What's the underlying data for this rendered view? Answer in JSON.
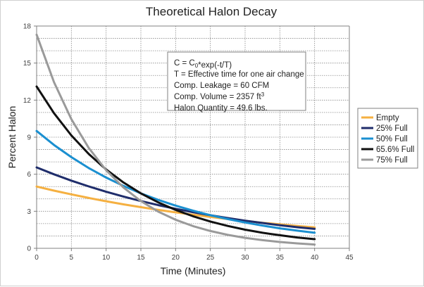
{
  "chart_data": {
    "type": "line",
    "title": "Theoretical Halon Decay",
    "xlabel": "Time (Minutes)",
    "ylabel": "Percent Halon",
    "xlim": [
      0,
      45
    ],
    "ylim": [
      0,
      18
    ],
    "xticks": [
      0,
      5,
      10,
      15,
      20,
      25,
      30,
      35,
      40,
      45
    ],
    "yticks": [
      0,
      3,
      6,
      9,
      12,
      15,
      18
    ],
    "grid": true,
    "legend_position": "right",
    "x": [
      0,
      2.5,
      5,
      7.5,
      10,
      12.5,
      15,
      17.5,
      20,
      22.5,
      25,
      27.5,
      30,
      32.5,
      35,
      37.5,
      40
    ],
    "series": [
      {
        "name": "Empty",
        "color": "#f5b041",
        "values": [
          5.0,
          4.67,
          4.37,
          4.08,
          3.81,
          3.56,
          3.33,
          3.11,
          2.91,
          2.72,
          2.54,
          2.37,
          2.22,
          2.07,
          1.94,
          1.81,
          1.69
        ]
      },
      {
        "name": "25% Full",
        "color": "#1f2d6b",
        "values": [
          6.55,
          5.99,
          5.48,
          5.01,
          4.58,
          4.19,
          3.83,
          3.5,
          3.2,
          2.93,
          2.68,
          2.45,
          2.24,
          2.05,
          1.87,
          1.71,
          1.57
        ]
      },
      {
        "name": "50% Full",
        "color": "#1a8fd0",
        "values": [
          9.5,
          8.37,
          7.38,
          6.5,
          5.73,
          5.05,
          4.45,
          3.92,
          3.46,
          3.05,
          2.68,
          2.37,
          2.09,
          1.84,
          1.62,
          1.43,
          1.26
        ]
      },
      {
        "name": "65.6% Full",
        "color": "#111111",
        "values": [
          13.1,
          10.94,
          9.14,
          7.64,
          6.38,
          5.33,
          4.45,
          3.72,
          3.11,
          2.6,
          2.17,
          1.81,
          1.51,
          1.26,
          1.06,
          0.88,
          0.74
        ]
      },
      {
        "name": "75% Full",
        "color": "#9a9a9a",
        "values": [
          17.3,
          13.45,
          10.46,
          8.13,
          6.32,
          4.92,
          3.82,
          2.97,
          2.31,
          1.8,
          1.4,
          1.09,
          0.85,
          0.66,
          0.51,
          0.4,
          0.31
        ]
      }
    ],
    "annotation": {
      "lines": [
        {
          "parts": [
            {
              "t": "C = C"
            },
            {
              "t": "0",
              "sub": true
            },
            {
              "t": "*exp(-t/T)"
            }
          ]
        },
        {
          "parts": [
            {
              "t": "T = Effective time for one air change"
            }
          ]
        },
        {
          "parts": [
            {
              "t": "Comp. Leakage = 60 CFM"
            }
          ]
        },
        {
          "parts": [
            {
              "t": "Comp. Volume = 2357 ft"
            },
            {
              "t": "3",
              "sup": true
            }
          ]
        },
        {
          "parts": [
            {
              "t": "Halon Quantity = 49.6 lbs."
            }
          ]
        }
      ]
    }
  }
}
